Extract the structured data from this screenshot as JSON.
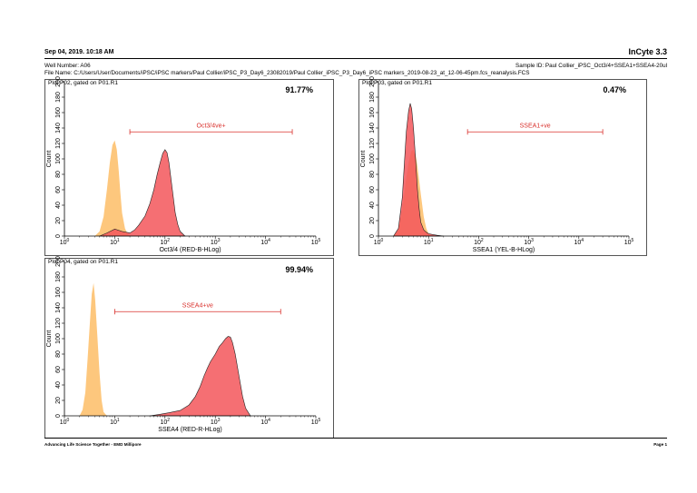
{
  "header": {
    "date": "Sep 04, 2019.  10:18 AM",
    "app_name": "InCyte 3.3",
    "well_number": "Well Number: A06",
    "sample_id": "Sample ID: Paul Collier_iPSC_Oct3/4+SSEA1+SSEA4-20ul",
    "file_name": "File Name: C:/Users/User/Documents/iPSC/iPSC markers/Paul Collier/iPSC_P3_Day6_23082019/Paul Collier_iPSC_P3_Day6_iPSC markers_2019-08-23_at_12-06-45pm.fcs_reanalysis.FCS"
  },
  "footer": {
    "tagline": "Advancing Life Science Together - EMD Millipore",
    "page": "Page 1"
  },
  "colors": {
    "control": "#fdc77d",
    "stained": "#f3565a",
    "gate": "#d9302c"
  },
  "chart_data": [
    {
      "type": "area",
      "title": "Plot P02, gated on P01.R1",
      "percent": "91.77%",
      "gate_label": "Oct3/4ve+",
      "gate_range": [
        20,
        34000
      ],
      "xlabel": "Oct3/4 (RED-B-HLog)",
      "ylabel": "Count",
      "xscale": "log",
      "xlim": [
        1,
        100000
      ],
      "ylim": [
        0,
        200
      ],
      "xticks": [
        "10",
        "10",
        "10",
        "10",
        "10",
        "10"
      ],
      "xtick_exponents": [
        "0",
        "1",
        "2",
        "3",
        "4",
        "5"
      ],
      "yticks": [
        "0",
        "20",
        "40",
        "60",
        "80",
        "100",
        "120",
        "140",
        "160",
        "180",
        "200"
      ],
      "series": [
        {
          "role": "control",
          "x": [
            4,
            5,
            6,
            7,
            8,
            9,
            10,
            11,
            12,
            13,
            14,
            16,
            18,
            20
          ],
          "values": [
            0,
            6,
            25,
            60,
            95,
            118,
            124,
            112,
            85,
            55,
            30,
            10,
            3,
            0
          ]
        },
        {
          "role": "stained",
          "x": [
            5,
            7,
            10,
            14,
            17,
            20,
            25,
            30,
            40,
            50,
            60,
            70,
            80,
            90,
            100,
            110,
            120,
            140,
            160,
            180,
            200,
            250
          ],
          "values": [
            0,
            4,
            9,
            6,
            5,
            4,
            8,
            14,
            26,
            42,
            60,
            80,
            95,
            107,
            112,
            108,
            95,
            60,
            30,
            15,
            6,
            0
          ]
        }
      ]
    },
    {
      "type": "area",
      "title": "Plot P03, gated on P01.R1",
      "percent": "0.47%",
      "gate_label": "SSEA1+ve",
      "gate_range": [
        60,
        30000
      ],
      "xlabel": "SSEA1 (YEL-B-HLog)",
      "ylabel": "Count",
      "xscale": "log",
      "xlim": [
        1,
        100000
      ],
      "ylim": [
        0,
        200
      ],
      "xticks": [
        "10",
        "10",
        "10",
        "10",
        "10",
        "10"
      ],
      "xtick_exponents": [
        "0",
        "1",
        "2",
        "3",
        "4",
        "5"
      ],
      "yticks": [
        "0",
        "20",
        "40",
        "60",
        "80",
        "100",
        "120",
        "140",
        "160",
        "180",
        "200"
      ],
      "series": [
        {
          "role": "control",
          "x": [
            2,
            2.5,
            3,
            3.5,
            4,
            4.5,
            5,
            5.5,
            6,
            7,
            8,
            9,
            10,
            12
          ],
          "values": [
            0,
            8,
            35,
            70,
            95,
            110,
            112,
            106,
            90,
            55,
            25,
            10,
            3,
            0
          ]
        },
        {
          "role": "stained",
          "x": [
            2,
            2.5,
            3,
            3.3,
            3.6,
            4,
            4.3,
            4.6,
            5,
            5.5,
            6,
            6.5,
            7,
            8,
            9,
            10,
            12,
            15,
            20
          ],
          "values": [
            0,
            10,
            50,
            95,
            135,
            162,
            172,
            165,
            140,
            100,
            60,
            35,
            18,
            8,
            5,
            3,
            2,
            1,
            0
          ]
        }
      ]
    },
    {
      "type": "area",
      "title": "Plot P04, gated on P01.R1",
      "percent": "99.94%",
      "gate_label": "SSEA4+ve",
      "gate_range": [
        10,
        20000
      ],
      "xlabel": "SSEA4 (RED-R-HLog)",
      "ylabel": "Count",
      "xscale": "log",
      "xlim": [
        1,
        100000
      ],
      "ylim": [
        0,
        200
      ],
      "xticks": [
        "10",
        "10",
        "10",
        "10",
        "10",
        "10"
      ],
      "xtick_exponents": [
        "0",
        "1",
        "2",
        "3",
        "4",
        "5"
      ],
      "yticks": [
        "0",
        "20",
        "40",
        "60",
        "80",
        "100",
        "120",
        "140",
        "160",
        "180",
        "200"
      ],
      "series": [
        {
          "role": "control",
          "x": [
            2,
            2.3,
            2.6,
            2.9,
            3.2,
            3.5,
            3.8,
            4.1,
            4.5,
            5,
            5.5,
            6,
            7
          ],
          "values": [
            0,
            8,
            30,
            75,
            120,
            158,
            172,
            150,
            105,
            55,
            20,
            5,
            0
          ]
        },
        {
          "role": "stained",
          "x": [
            50,
            80,
            120,
            200,
            300,
            400,
            500,
            600,
            700,
            800,
            1000,
            1200,
            1400,
            1600,
            1800,
            2000,
            2200,
            2500,
            3000,
            3500,
            4000,
            5000
          ],
          "values": [
            0,
            2,
            4,
            7,
            14,
            25,
            38,
            52,
            62,
            70,
            80,
            90,
            95,
            100,
            103,
            102,
            95,
            80,
            50,
            25,
            10,
            0
          ]
        }
      ]
    }
  ]
}
